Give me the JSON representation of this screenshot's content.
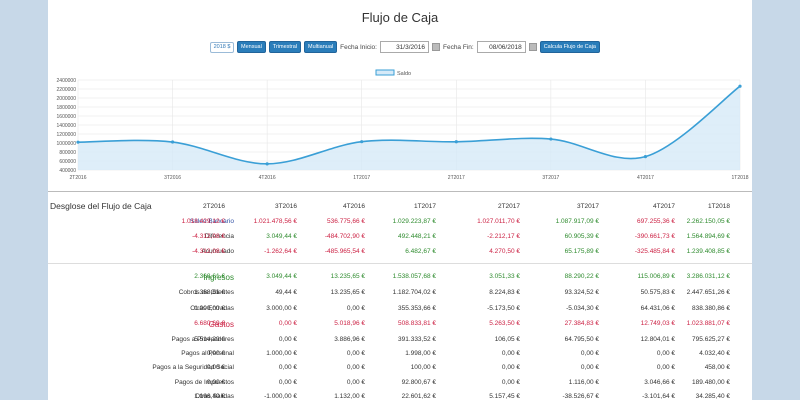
{
  "title": "Flujo de Caja",
  "toolbar": {
    "year": "2018 $",
    "btn_mensual": "Mensual",
    "btn_trimestral": "Trimestral",
    "btn_multianual": "Multianual",
    "fecha_inicio_label": "Fecha Inicio:",
    "fecha_inicio_value": "31/3/2016",
    "fecha_fin_label": "Fecha Fin:",
    "fecha_fin_value": "08/06/2018",
    "btn_calcula": "Calcula Flujo de Caja"
  },
  "chart_data": {
    "type": "area",
    "title": "",
    "legend": [
      "Saldo"
    ],
    "legend_position": "top-center",
    "categories": [
      "2T2016",
      "3T2016",
      "4T2016",
      "1T2017",
      "2T2017",
      "3T2017",
      "4T2017",
      "1T2018"
    ],
    "series": [
      {
        "name": "Saldo",
        "values": [
          1018429.12,
          1021478.56,
          536775.66,
          1029223.87,
          1027011.7,
          1087917.09,
          697255.36,
          2262150.05
        ]
      }
    ],
    "ylim": [
      400000,
      2400000
    ],
    "yticks": [
      "2400000",
      "2200000",
      "2000000",
      "1800000",
      "1600000",
      "1400000",
      "1200000",
      "1000000",
      "800000",
      "600000",
      "400000"
    ],
    "grid": true,
    "colors": {
      "line": "#3a9fd6",
      "fill": "#d6eaf8"
    }
  },
  "table": {
    "title": "Desglose del Flujo de Caja",
    "columns": [
      "2T2016",
      "3T2016",
      "4T2016",
      "1T2017",
      "2T2017",
      "3T2017",
      "4T2017",
      "1T2018"
    ],
    "rows": [
      {
        "label": "Saldo Bancario",
        "label_color": "blue",
        "colors": [
          "red",
          "red",
          "red",
          "green",
          "red",
          "green",
          "red",
          "green"
        ],
        "values": [
          "1.018.429,12 €",
          "1.021.478,56 €",
          "536.775,66 €",
          "1.029.223,87 €",
          "1.027.011,70 €",
          "1.087.917,09 €",
          "697.255,36 €",
          "2.262.150,05 €"
        ]
      },
      {
        "label": "Diferencia",
        "label_color": "dark",
        "colors": [
          "red",
          "green",
          "red",
          "green",
          "red",
          "green",
          "red",
          "green"
        ],
        "values": [
          "-4.312,08 €",
          "3.049,44 €",
          "-484.702,90 €",
          "492.448,21 €",
          "-2.212,17 €",
          "60.905,39 €",
          "-390.661,73 €",
          "1.564.894,69 €"
        ]
      },
      {
        "label": "Acumulado",
        "label_color": "dark",
        "colors": [
          "red",
          "red",
          "red",
          "green",
          "red",
          "green",
          "red",
          "green"
        ],
        "values": [
          "-4.312,08 €",
          "-1.262,64 €",
          "-485.965,54 €",
          "6.482,67 €",
          "4.270,50 €",
          "65.175,89 €",
          "-325.485,84 €",
          "1.239.408,85 €"
        ]
      },
      {
        "label": "Ingresos",
        "label_color": "green",
        "big": true,
        "colors": [
          "green",
          "green",
          "green",
          "green",
          "green",
          "green",
          "green",
          "green"
        ],
        "values": [
          "2.368,61 €",
          "3.049,44 €",
          "13.235,65 €",
          "1.538.057,68 €",
          "3.051,33 €",
          "88.290,22 €",
          "115.006,89 €",
          "3.286.031,12 €"
        ]
      },
      {
        "label": "Cobros de Clientes",
        "label_color": "dark",
        "colors": [
          "dark",
          "dark",
          "dark",
          "dark",
          "dark",
          "dark",
          "dark",
          "dark"
        ],
        "values": [
          "1.368,61 €",
          "49,44 €",
          "13.235,65 €",
          "1.182.704,02 €",
          "8.224,83 €",
          "93.324,52 €",
          "50.575,83 €",
          "2.447.651,26 €"
        ]
      },
      {
        "label": "Otras Entradas",
        "label_color": "dark",
        "colors": [
          "dark",
          "dark",
          "dark",
          "dark",
          "dark",
          "dark",
          "dark",
          "dark"
        ],
        "values": [
          "1.000,00 €",
          "3.000,00 €",
          "0,00 €",
          "355.353,66 €",
          "-5.173,50 €",
          "-5.034,30 €",
          "64.431,06 €",
          "838.380,86 €"
        ]
      },
      {
        "label": "Gastos",
        "label_color": "red",
        "big": true,
        "colors": [
          "red",
          "red",
          "red",
          "red",
          "red",
          "red",
          "red",
          "red"
        ],
        "values": [
          "6.680,69 €",
          "0,00 €",
          "5.018,96 €",
          "508.833,81 €",
          "5.263,50 €",
          "27.384,83 €",
          "12.749,03 €",
          "1.023.881,07 €"
        ]
      },
      {
        "label": "Pagos a Proveedores",
        "label_color": "dark",
        "colors": [
          "dark",
          "dark",
          "dark",
          "dark",
          "dark",
          "dark",
          "dark",
          "dark"
        ],
        "values": [
          "5.514,29 €",
          "0,00 €",
          "3.886,96 €",
          "391.333,52 €",
          "106,05 €",
          "64.795,50 €",
          "12.804,01 €",
          "795.625,27 €"
        ]
      },
      {
        "label": "Pagos al Personal",
        "label_color": "dark",
        "colors": [
          "dark",
          "dark",
          "dark",
          "dark",
          "dark",
          "dark",
          "dark",
          "dark"
        ],
        "values": [
          "0,00 €",
          "1.000,00 €",
          "0,00 €",
          "1.998,00 €",
          "0,00 €",
          "0,00 €",
          "0,00 €",
          "4.032,40 €"
        ]
      },
      {
        "label": "Pagos a la Seguridad Social",
        "label_color": "dark",
        "colors": [
          "dark",
          "dark",
          "dark",
          "dark",
          "dark",
          "dark",
          "dark",
          "dark"
        ],
        "values": [
          "0,00 €",
          "0,00 €",
          "0,00 €",
          "100,00 €",
          "0,00 €",
          "0,00 €",
          "0,00 €",
          "458,00 €"
        ]
      },
      {
        "label": "Pagos de Impuestos",
        "label_color": "dark",
        "colors": [
          "dark",
          "dark",
          "dark",
          "dark",
          "dark",
          "dark",
          "dark",
          "dark"
        ],
        "values": [
          "0,00 €",
          "0,00 €",
          "0,00 €",
          "92.800,67 €",
          "0,00 €",
          "1.116,00 €",
          "3.046,66 €",
          "189.480,00 €"
        ]
      },
      {
        "label": "Otras Salidas",
        "label_color": "dark",
        "colors": [
          "dark",
          "dark",
          "dark",
          "dark",
          "dark",
          "dark",
          "dark",
          "dark"
        ],
        "values": [
          "1.166,40 €",
          "-1.000,00 €",
          "1.132,00 €",
          "22.601,62 €",
          "5.157,45 €",
          "-38.526,67 €",
          "-3.101,64 €",
          "34.285,40 €"
        ]
      }
    ]
  }
}
